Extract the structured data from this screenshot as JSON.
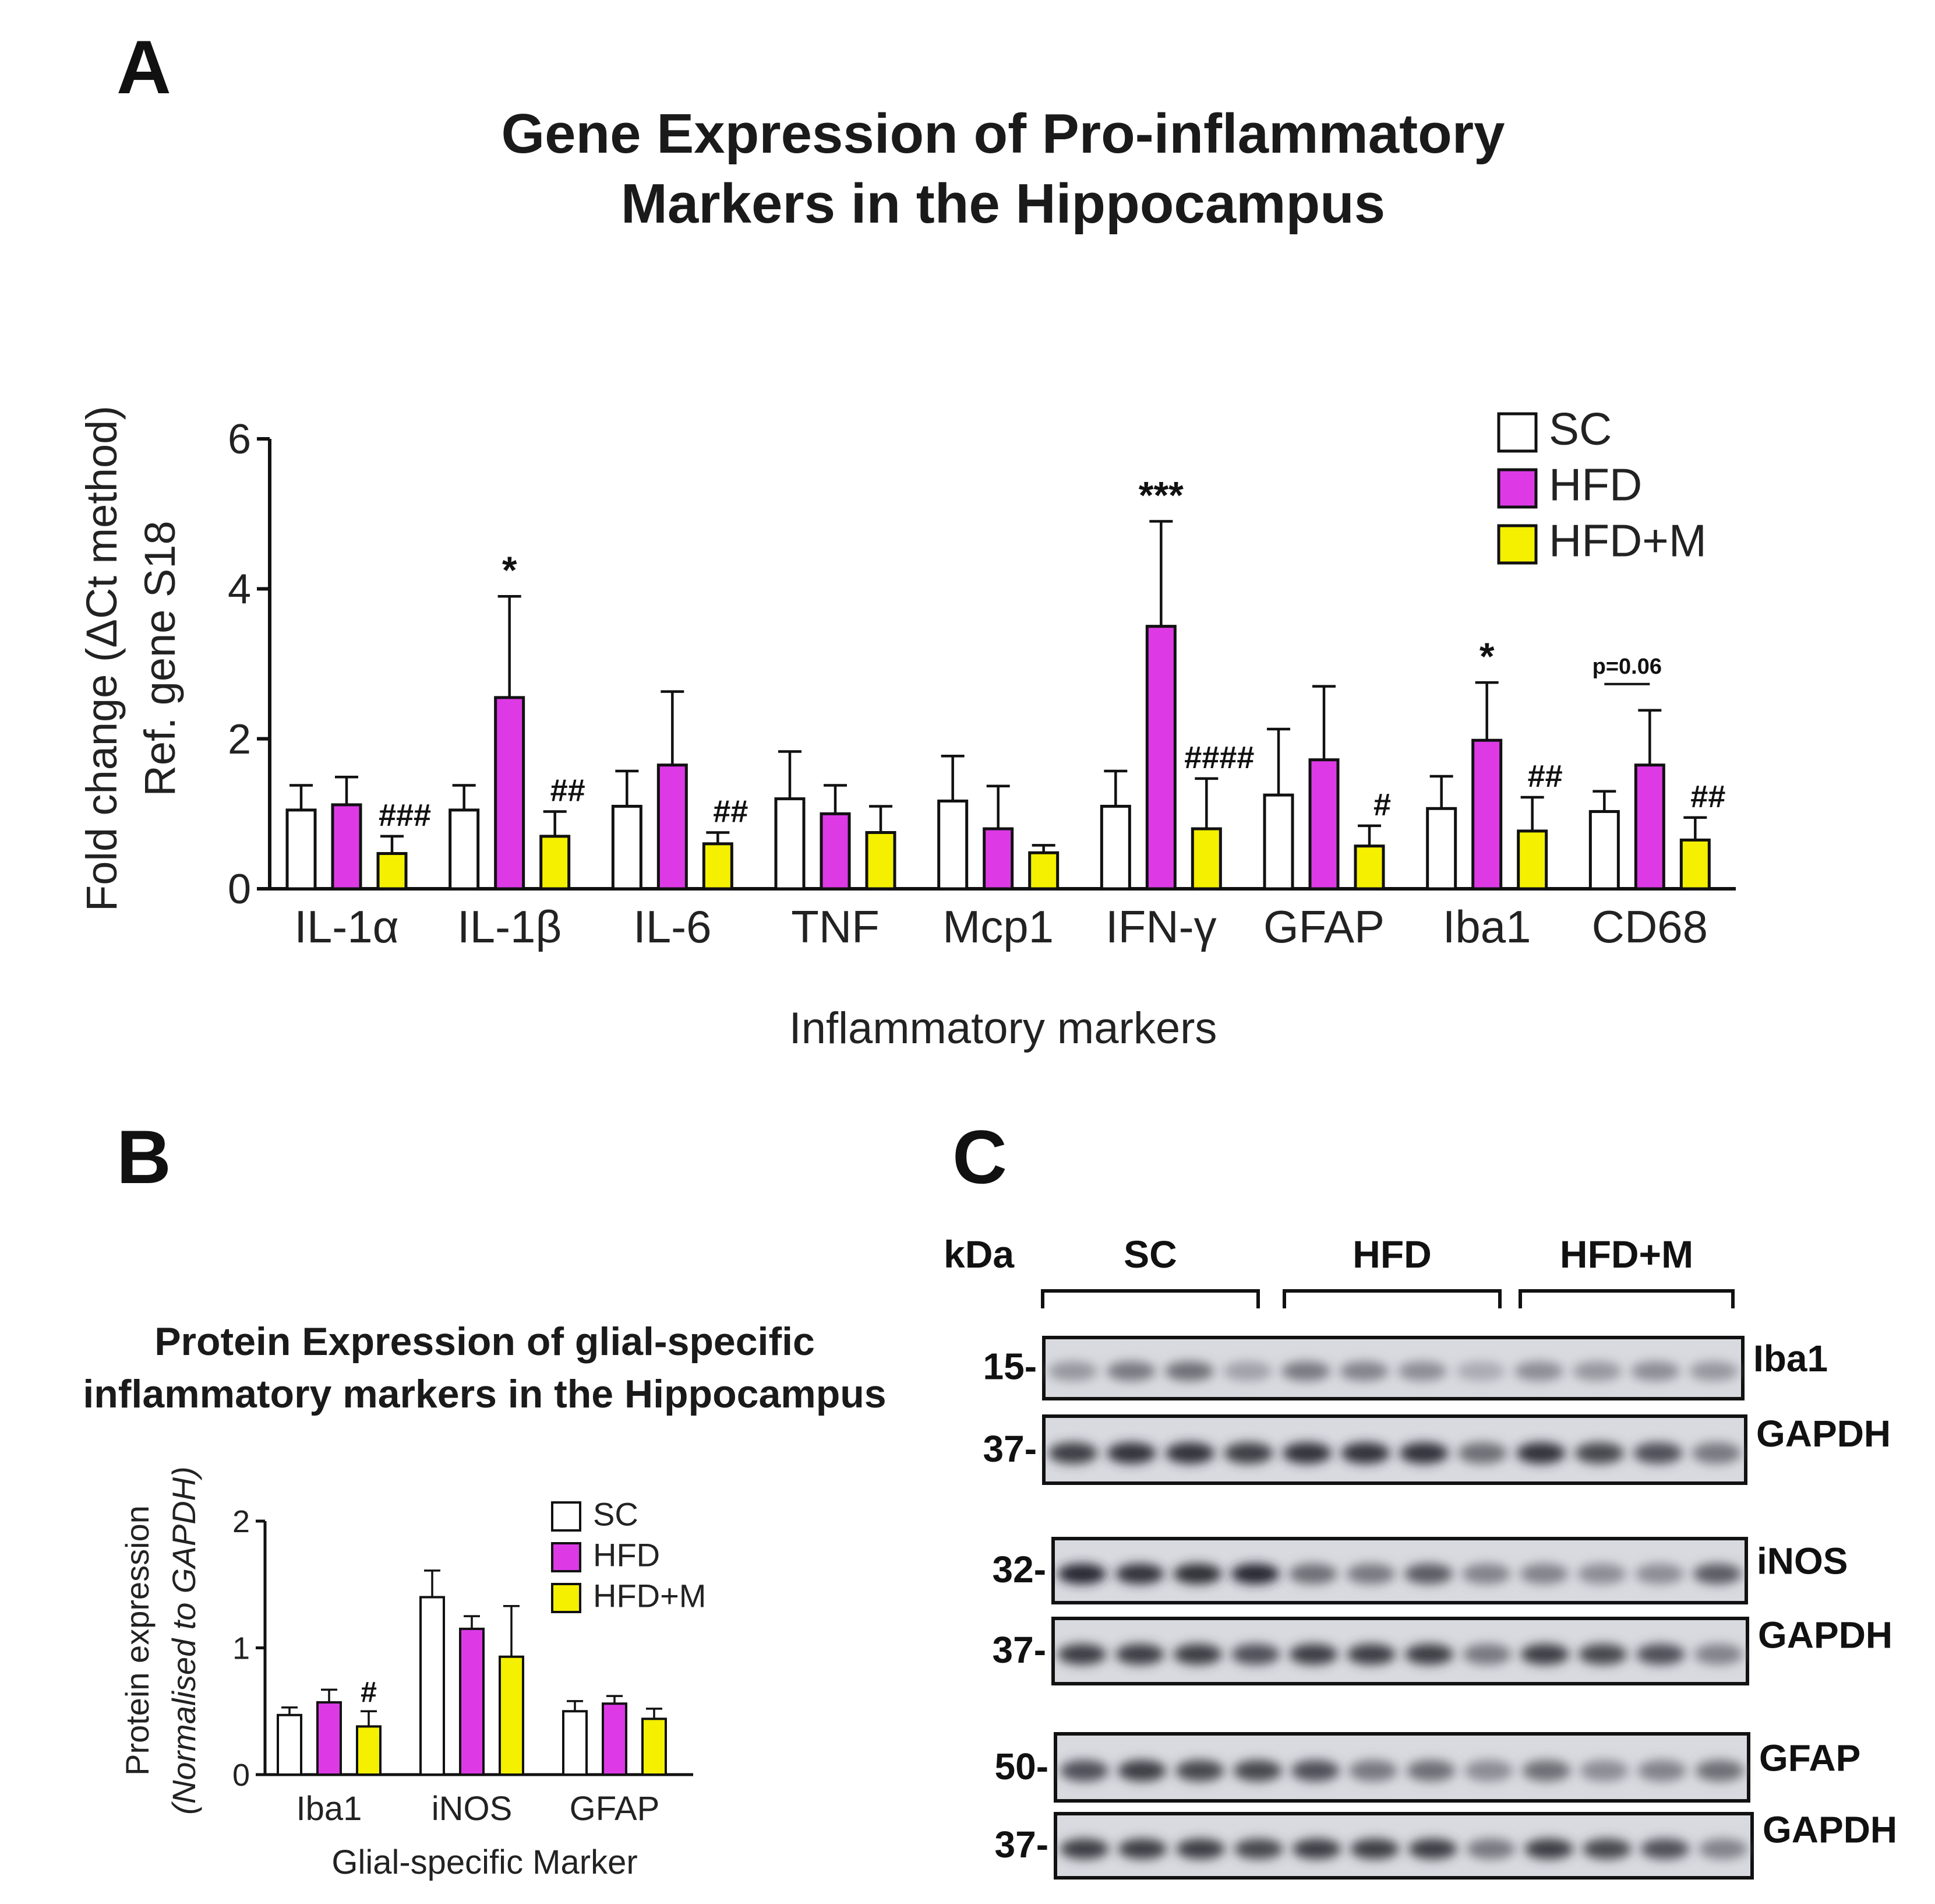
{
  "panels": {
    "a": "A",
    "b": "B",
    "c": "C"
  },
  "colors": {
    "SC": "#ffffff",
    "HFD": "#dd3ae6",
    "HFD+M": "#f4f000",
    "stroke": "#111111"
  },
  "chart_data": [
    {
      "id": "panel-a",
      "type": "bar",
      "title_lines": [
        "Gene Expression of Pro-inflammatory",
        "Markers in the Hippocampus"
      ],
      "xlabel": "Inflammatory markers",
      "ylabel_lines": [
        "Fold change (ΔCt  method)",
        "Ref. gene S18"
      ],
      "ylim": [
        0,
        6
      ],
      "yticks": [
        0,
        2,
        4,
        6
      ],
      "categories": [
        "IL-1α",
        "IL-1β",
        "IL-6",
        "TNF",
        "Mcp1",
        "IFN-γ",
        "GFAP",
        "Iba1",
        "CD68"
      ],
      "series": [
        {
          "name": "SC",
          "values": [
            1.05,
            1.05,
            1.1,
            1.2,
            1.17,
            1.1,
            1.25,
            1.07,
            1.03
          ],
          "errors": [
            0.33,
            0.33,
            0.47,
            0.63,
            0.6,
            0.47,
            0.88,
            0.43,
            0.27
          ]
        },
        {
          "name": "HFD",
          "values": [
            1.12,
            2.55,
            1.65,
            1.0,
            0.8,
            3.5,
            1.72,
            1.98,
            1.65
          ],
          "errors": [
            0.37,
            1.35,
            0.98,
            0.38,
            0.57,
            1.4,
            0.98,
            0.77,
            0.73
          ]
        },
        {
          "name": "HFD+M",
          "values": [
            0.47,
            0.7,
            0.6,
            0.75,
            0.48,
            0.8,
            0.57,
            0.77,
            0.65
          ],
          "errors": [
            0.23,
            0.33,
            0.15,
            0.35,
            0.1,
            0.67,
            0.27,
            0.45,
            0.3
          ]
        }
      ],
      "annotations": [
        {
          "category": "IL-1α",
          "series": "HFD+M",
          "text": "###"
        },
        {
          "category": "IL-1β",
          "series": "HFD",
          "text": "*"
        },
        {
          "category": "IL-1β",
          "series": "HFD+M",
          "text": "##"
        },
        {
          "category": "IL-6",
          "series": "HFD+M",
          "text": "##"
        },
        {
          "category": "IFN-γ",
          "series": "HFD",
          "text": "***"
        },
        {
          "category": "IFN-γ",
          "series": "HFD+M",
          "text": "####"
        },
        {
          "category": "GFAP",
          "series": "HFD+M",
          "text": "#"
        },
        {
          "category": "Iba1",
          "series": "HFD",
          "text": "*"
        },
        {
          "category": "Iba1",
          "series": "HFD+M",
          "text": "##"
        },
        {
          "category": "CD68",
          "series": "HFD+M",
          "text": "##"
        }
      ],
      "bracket": {
        "category": "CD68",
        "from": "SC",
        "to": "HFD",
        "text": "p=0.06"
      },
      "legend": {
        "position": "top-right",
        "items": [
          "SC",
          "HFD",
          "HFD+M"
        ]
      }
    },
    {
      "id": "panel-b",
      "type": "bar",
      "title_lines": [
        "Protein Expression of glial-specific",
        "inflammatory markers in the Hippocampus"
      ],
      "xlabel": "Glial-specific Marker",
      "ylabel_lines": [
        "Protein expression",
        "(Normalised to GAPDH)"
      ],
      "ylim": [
        0,
        2
      ],
      "yticks": [
        0,
        1,
        2
      ],
      "categories": [
        "Iba1",
        "iNOS",
        "GFAP"
      ],
      "series": [
        {
          "name": "SC",
          "values": [
            0.47,
            1.4,
            0.5
          ],
          "errors": [
            0.06,
            0.21,
            0.08
          ]
        },
        {
          "name": "HFD",
          "values": [
            0.57,
            1.15,
            0.56
          ],
          "errors": [
            0.1,
            0.1,
            0.06
          ]
        },
        {
          "name": "HFD+M",
          "values": [
            0.38,
            0.93,
            0.44
          ],
          "errors": [
            0.12,
            0.4,
            0.08
          ]
        }
      ],
      "annotations": [
        {
          "category": "Iba1",
          "series": "HFD+M",
          "text": "#"
        }
      ],
      "legend": {
        "position": "top-right",
        "items": [
          "SC",
          "HFD",
          "HFD+M"
        ]
      }
    }
  ],
  "blot": {
    "kda_label": "kDa",
    "groups": [
      "SC",
      "HFD",
      "HFD+M"
    ],
    "strips": [
      {
        "marker": "15-",
        "protein": "Iba1",
        "intensities": [
          0.4,
          0.55,
          0.6,
          0.35,
          0.55,
          0.5,
          0.45,
          0.3,
          0.45,
          0.4,
          0.45,
          0.4
        ]
      },
      {
        "marker": "37-",
        "protein": "GAPDH",
        "intensities": [
          0.85,
          0.9,
          0.9,
          0.85,
          0.9,
          0.9,
          0.9,
          0.6,
          0.9,
          0.8,
          0.75,
          0.55
        ]
      },
      {
        "marker": "32-",
        "protein": "iNOS",
        "intensities": [
          0.95,
          0.9,
          0.92,
          0.95,
          0.6,
          0.55,
          0.7,
          0.5,
          0.5,
          0.45,
          0.45,
          0.7
        ]
      },
      {
        "marker": "37-",
        "protein": "GAPDH",
        "intensities": [
          0.85,
          0.85,
          0.85,
          0.75,
          0.85,
          0.85,
          0.85,
          0.55,
          0.85,
          0.8,
          0.75,
          0.5
        ]
      },
      {
        "marker": "50-",
        "protein": "GFAP",
        "intensities": [
          0.75,
          0.85,
          0.8,
          0.8,
          0.75,
          0.55,
          0.6,
          0.45,
          0.6,
          0.45,
          0.5,
          0.6
        ]
      },
      {
        "marker": "37-",
        "protein": "GAPDH",
        "intensities": [
          0.85,
          0.85,
          0.85,
          0.8,
          0.85,
          0.85,
          0.85,
          0.55,
          0.85,
          0.8,
          0.75,
          0.5
        ]
      }
    ]
  }
}
